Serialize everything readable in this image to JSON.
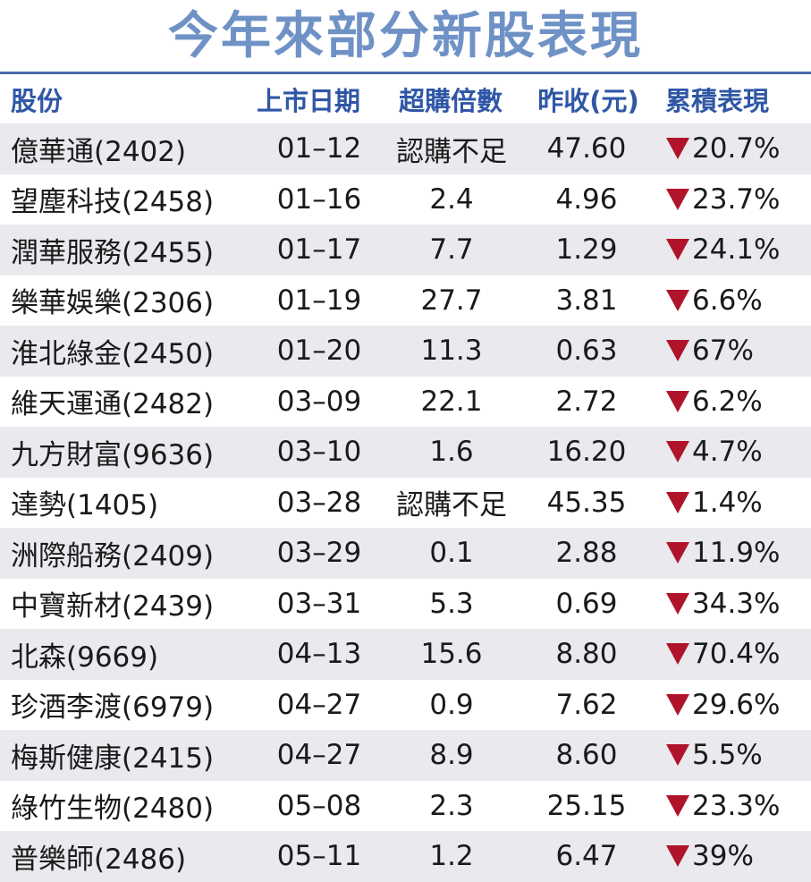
{
  "title": "今年來部分新股表現",
  "headers": {
    "name": "股份",
    "date": "上市日期",
    "subscription": "超購倍數",
    "close": "昨收(元)",
    "performance": "累積表現"
  },
  "rows": [
    {
      "name": "億華通(2402)",
      "date": "01–12",
      "subscription": "認購不足",
      "close": "47.60",
      "performance": "20.7%"
    },
    {
      "name": "望塵科技(2458)",
      "date": "01–16",
      "subscription": "2.4",
      "close": "4.96",
      "performance": "23.7%"
    },
    {
      "name": "潤華服務(2455)",
      "date": "01–17",
      "subscription": "7.7",
      "close": "1.29",
      "performance": "24.1%"
    },
    {
      "name": "樂華娛樂(2306)",
      "date": "01–19",
      "subscription": "27.7",
      "close": "3.81",
      "performance": "6.6%"
    },
    {
      "name": "淮北綠金(2450)",
      "date": "01–20",
      "subscription": "11.3",
      "close": "0.63",
      "performance": "67%"
    },
    {
      "name": "維天運通(2482)",
      "date": "03–09",
      "subscription": "22.1",
      "close": "2.72",
      "performance": "6.2%"
    },
    {
      "name": "九方財富(9636)",
      "date": "03–10",
      "subscription": "1.6",
      "close": "16.20",
      "performance": "4.7%"
    },
    {
      "name": "達勢(1405)",
      "date": "03–28",
      "subscription": "認購不足",
      "close": "45.35",
      "performance": "1.4%"
    },
    {
      "name": "洲際船務(2409)",
      "date": "03–29",
      "subscription": "0.1",
      "close": "2.88",
      "performance": "11.9%"
    },
    {
      "name": "中寶新材(2439)",
      "date": "03–31",
      "subscription": "5.3",
      "close": "0.69",
      "performance": "34.3%"
    },
    {
      "name": "北森(9669)",
      "date": "04–13",
      "subscription": "15.6",
      "close": "8.80",
      "performance": "70.4%"
    },
    {
      "name": "珍酒李渡(6979)",
      "date": "04–27",
      "subscription": "0.9",
      "close": "7.62",
      "performance": "29.6%"
    },
    {
      "name": "梅斯健康(2415)",
      "date": "04–27",
      "subscription": "8.9",
      "close": "8.60",
      "performance": "5.5%"
    },
    {
      "name": "綠竹生物(2480)",
      "date": "05–08",
      "subscription": "2.3",
      "close": "25.15",
      "performance": "23.3%"
    },
    {
      "name": "普樂師(2486)",
      "date": "05–11",
      "subscription": "1.2",
      "close": "6.47",
      "performance": "39%"
    }
  ],
  "colors": {
    "title": "#6f92c6",
    "header_text": "#2f57a6",
    "rule": "#4a6aa6",
    "row_shade": "#e9e9ee",
    "down_arrow": "#b0142a"
  },
  "icons": {
    "performance_direction": "down-triangle-icon"
  }
}
